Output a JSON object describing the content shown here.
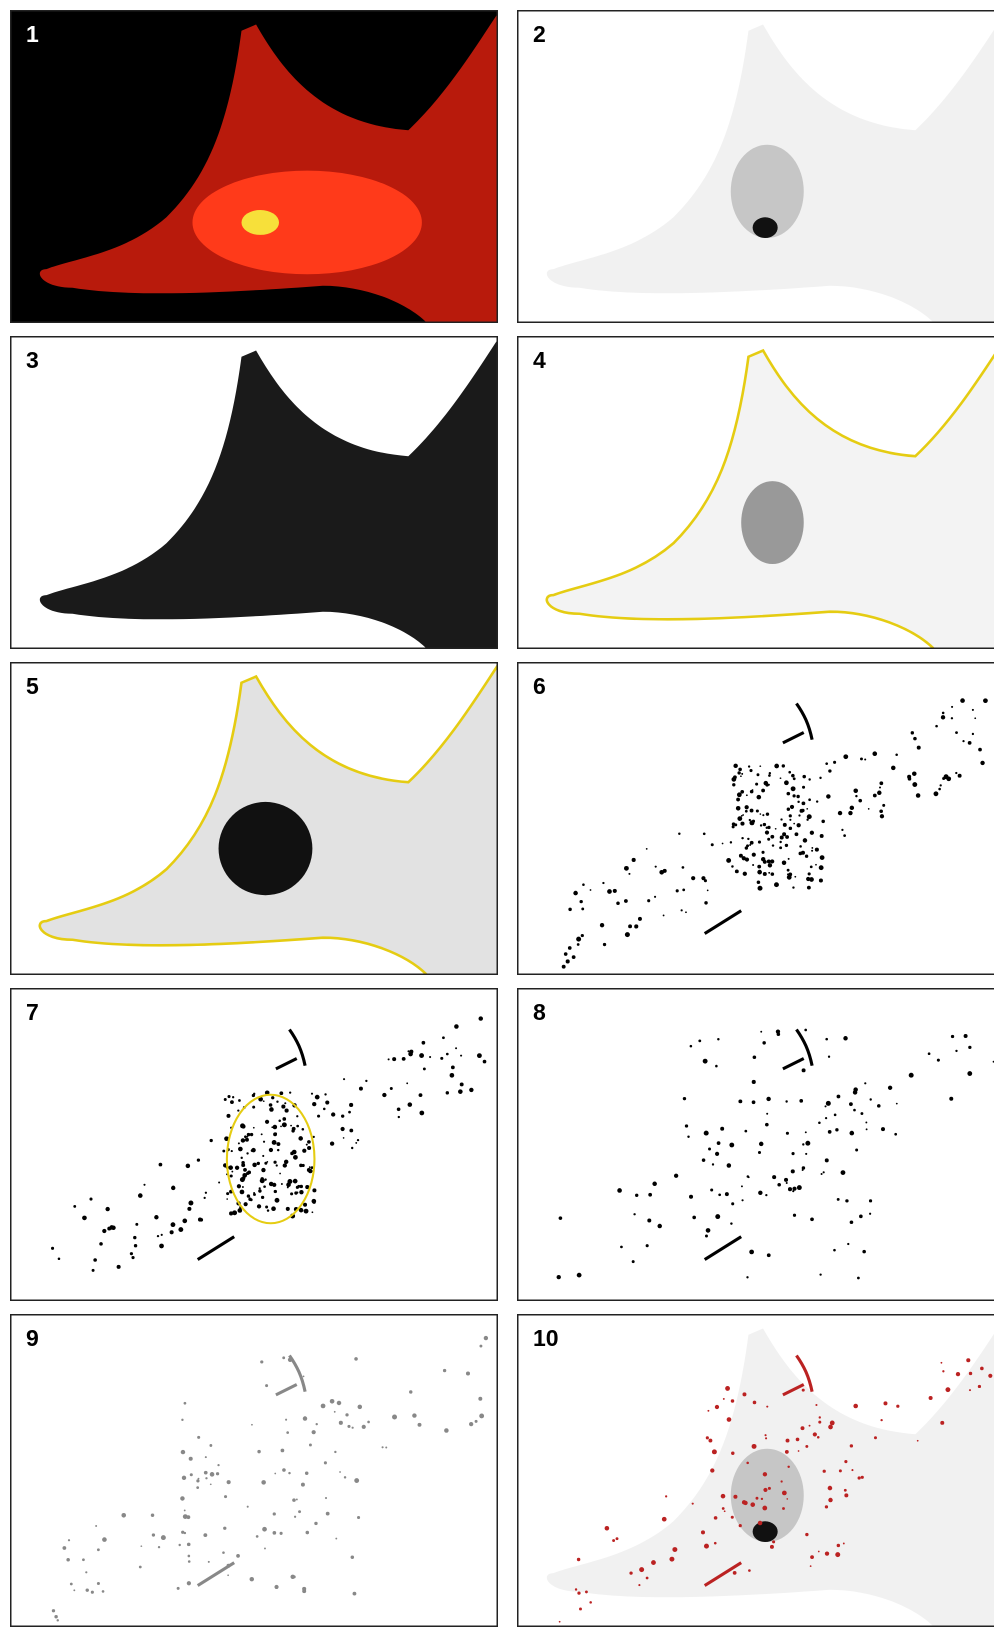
{
  "panels": [
    {
      "label": "1"
    },
    {
      "label": "2"
    },
    {
      "label": "3"
    },
    {
      "label": "4"
    },
    {
      "label": "5"
    },
    {
      "label": "6"
    },
    {
      "label": "7"
    },
    {
      "label": "8"
    },
    {
      "label": "9"
    },
    {
      "label": "10"
    }
  ]
}
